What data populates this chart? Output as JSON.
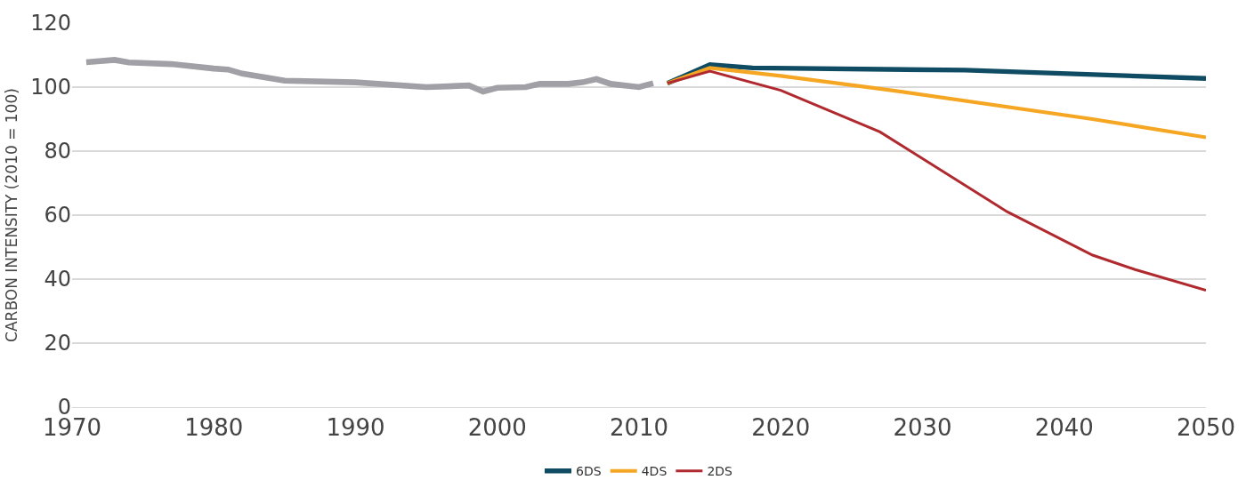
{
  "chart_data": {
    "type": "line",
    "ylabel": "CARBON INTENSITY (2010 = 100)",
    "xlim": [
      1970,
      2050
    ],
    "xticks": [
      1970,
      1980,
      1990,
      2000,
      2010,
      2020,
      2030,
      2040,
      2050
    ],
    "ylim": [
      0,
      120
    ],
    "yticks": [
      0,
      20,
      40,
      60,
      80,
      100,
      120
    ],
    "grid": "y",
    "legend": "bottom",
    "marker": "none",
    "line_style": "solid",
    "series": [
      {
        "color": "#a0a0a6",
        "x": [
          1971,
          1973,
          1974,
          1977,
          1980,
          1981,
          1982,
          1985,
          1990,
          1995,
          1998,
          1999,
          2000,
          2002,
          2003,
          2005,
          2006,
          2007,
          2008,
          2010,
          2011
        ],
        "values": [
          107.8,
          108.5,
          107.7,
          107.2,
          105.8,
          105.5,
          104.2,
          102,
          101.5,
          100,
          100.5,
          98.6,
          99.8,
          100,
          101,
          101,
          101.5,
          102.5,
          101,
          100,
          101.2
        ]
      },
      {
        "name": "6DS",
        "color": "#0f4c63",
        "x": [
          2012,
          2015,
          2018,
          2033,
          2050
        ],
        "values": [
          101.2,
          107,
          106,
          105.3,
          102.7
        ]
      },
      {
        "name": "4DS",
        "color": "#f5a623",
        "x": [
          2012,
          2015,
          2020,
          2027,
          2042,
          2050
        ],
        "values": [
          101.2,
          106,
          103.5,
          99.5,
          90,
          84.3
        ]
      },
      {
        "name": "2DS",
        "color": "#b0292e",
        "x": [
          2012,
          2015,
          2020,
          2027,
          2036,
          2042,
          2045,
          2050
        ],
        "values": [
          101.2,
          105,
          99,
          86,
          61,
          47.5,
          43,
          36.5
        ]
      }
    ]
  }
}
